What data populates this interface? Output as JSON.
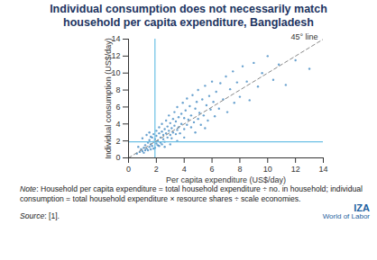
{
  "chart_data": {
    "type": "scatter",
    "title": "Individual consumption does not necessarily match household per capita expenditure, Bangladesh",
    "x_label": "Per capita expenditure (US$/day)",
    "y_label": "Individual consumption (US$/day)",
    "xlim": [
      0,
      14
    ],
    "ylim": [
      0,
      14
    ],
    "xticks": [
      0,
      2,
      4,
      6,
      8,
      10,
      12,
      14
    ],
    "yticks": [
      0,
      2,
      4,
      6,
      8,
      10,
      12,
      14
    ],
    "color": "#2b7bba",
    "marker": "circle",
    "poverty_line": 1.9,
    "poverty_line_color": "#6cc0e5",
    "diagonal_label": "45° line",
    "note_label": "Note",
    "note": ": Household per capita expenditure = total household expenditure ÷ no. in household; individual consumption = total household expenditure × resource shares ÷ scale economies.",
    "source_label": "Source",
    "source": ": [1].",
    "branding": [
      "IZA",
      "World of Labor"
    ],
    "x": [
      0.6,
      0.8,
      0.9,
      1.0,
      1.1,
      1.2,
      1.2,
      1.3,
      1.4,
      1.5,
      1.5,
      1.6,
      1.6,
      1.7,
      1.7,
      1.8,
      1.8,
      1.9,
      1.9,
      2.0,
      2.0,
      2.0,
      2.1,
      2.1,
      2.2,
      2.2,
      2.3,
      2.3,
      2.4,
      2.4,
      2.5,
      2.5,
      2.6,
      2.6,
      2.7,
      2.7,
      2.8,
      2.8,
      2.9,
      2.9,
      3.0,
      3.0,
      3.1,
      3.1,
      3.2,
      3.2,
      3.3,
      3.3,
      3.4,
      3.4,
      3.5,
      3.5,
      3.6,
      3.6,
      3.7,
      3.8,
      3.8,
      3.9,
      4.0,
      4.0,
      4.1,
      4.2,
      4.2,
      4.3,
      4.4,
      4.5,
      4.5,
      4.6,
      4.7,
      4.8,
      4.9,
      5.0,
      5.0,
      5.1,
      5.2,
      5.3,
      5.4,
      5.5,
      5.6,
      5.7,
      5.8,
      5.9,
      6.0,
      6.1,
      6.2,
      6.3,
      6.5,
      6.6,
      6.8,
      7.0,
      7.1,
      7.3,
      7.5,
      7.6,
      7.8,
      8.0,
      8.2,
      8.5,
      8.7,
      9.0,
      9.3,
      9.6,
      10.0,
      10.4,
      10.8,
      11.3,
      12.0,
      13.0,
      1.0,
      1.3,
      1.5,
      1.6,
      2.6,
      3.0,
      3.5,
      4.0,
      4.8,
      5.5,
      0.7,
      1.1,
      1.4,
      1.8,
      2.2,
      2.4
    ],
    "y": [
      0.5,
      0.7,
      1.0,
      0.8,
      1.2,
      0.9,
      1.5,
      1.1,
      1.8,
      1.3,
      2.1,
      1.0,
      1.6,
      2.4,
      1.4,
      1.9,
      2.8,
      1.2,
      2.2,
      1.7,
      2.6,
      3.2,
      1.5,
      2.0,
      2.9,
      3.6,
      1.8,
      2.4,
      3.1,
      4.0,
      2.2,
      2.7,
      3.4,
      1.9,
      4.4,
      2.9,
      3.7,
      2.4,
      3.2,
      5.0,
      2.7,
      4.1,
      3.5,
      2.3,
      4.6,
      3.0,
      5.4,
      3.8,
      2.8,
      4.3,
      3.3,
      6.0,
      4.8,
      3.6,
      2.9,
      5.2,
      4.0,
      6.5,
      3.4,
      4.7,
      5.6,
      3.9,
      7.0,
      4.5,
      6.1,
      3.6,
      5.0,
      7.4,
      4.2,
      5.8,
      6.6,
      4.6,
      8.0,
      5.3,
      3.9,
      6.9,
      5.0,
      8.5,
      6.2,
      4.4,
      7.3,
      5.7,
      9.0,
      6.6,
      4.9,
      7.8,
      5.8,
      8.8,
      6.9,
      9.6,
      5.4,
      8.1,
      10.2,
      6.5,
      8.9,
      7.2,
      10.8,
      9.0,
      6.8,
      11.2,
      8.4,
      10.0,
      12.0,
      9.2,
      11.0,
      8.6,
      11.5,
      10.5,
      2.3,
      2.7,
      3.0,
      2.5,
      1.3,
      1.6,
      2.0,
      2.4,
      3.0,
      3.5,
      1.3,
      0.6,
      0.9,
      1.1,
      1.4,
      1.6
    ]
  }
}
